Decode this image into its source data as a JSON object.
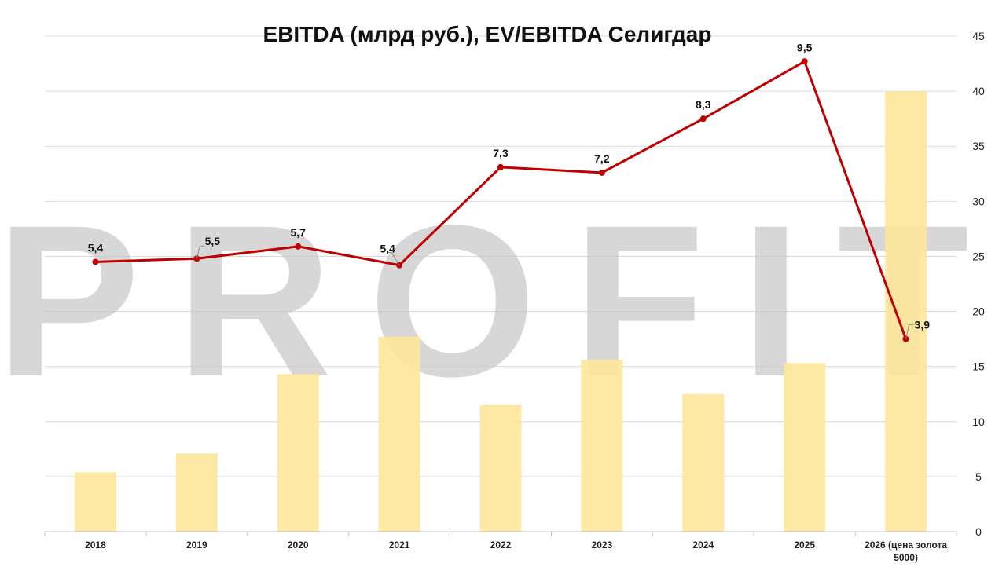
{
  "chart_data": {
    "type": "bar+line",
    "title": "EBITDA (млрд руб.), EV/EBITDA Селигдар",
    "categories": [
      "2018",
      "2019",
      "2020",
      "2021",
      "2022",
      "2023",
      "2024",
      "2025",
      "2026 (цена золота 5000)"
    ],
    "category_lines": [
      [
        "2018"
      ],
      [
        "2019"
      ],
      [
        "2020"
      ],
      [
        "2021"
      ],
      [
        "2022"
      ],
      [
        "2023"
      ],
      [
        "2024"
      ],
      [
        "2025"
      ],
      [
        "2026 (цена золота",
        "5000)"
      ]
    ],
    "series": [
      {
        "type": "bar",
        "values": [
          5.4,
          7.1,
          14.3,
          17.7,
          11.5,
          15.6,
          12.5,
          15.3,
          40.0
        ],
        "color": "#fde59a"
      },
      {
        "type": "line",
        "values": [
          24.5,
          24.8,
          25.9,
          24.2,
          33.1,
          32.6,
          37.5,
          42.7,
          17.5
        ],
        "labels": [
          "5,4",
          "5,5",
          "5,7",
          "5,4",
          "7,3",
          "7,2",
          "8,3",
          "9,5",
          "3,9"
        ],
        "color": "#c00000"
      }
    ],
    "ylim": [
      0,
      45
    ],
    "yticks": [
      0,
      5,
      10,
      15,
      20,
      25,
      30,
      35,
      40,
      45
    ],
    "y_axis_side": "right",
    "grid": true,
    "legend": "none"
  },
  "watermark": {
    "text": "PROFIT",
    "color": "#c8c8c8"
  }
}
